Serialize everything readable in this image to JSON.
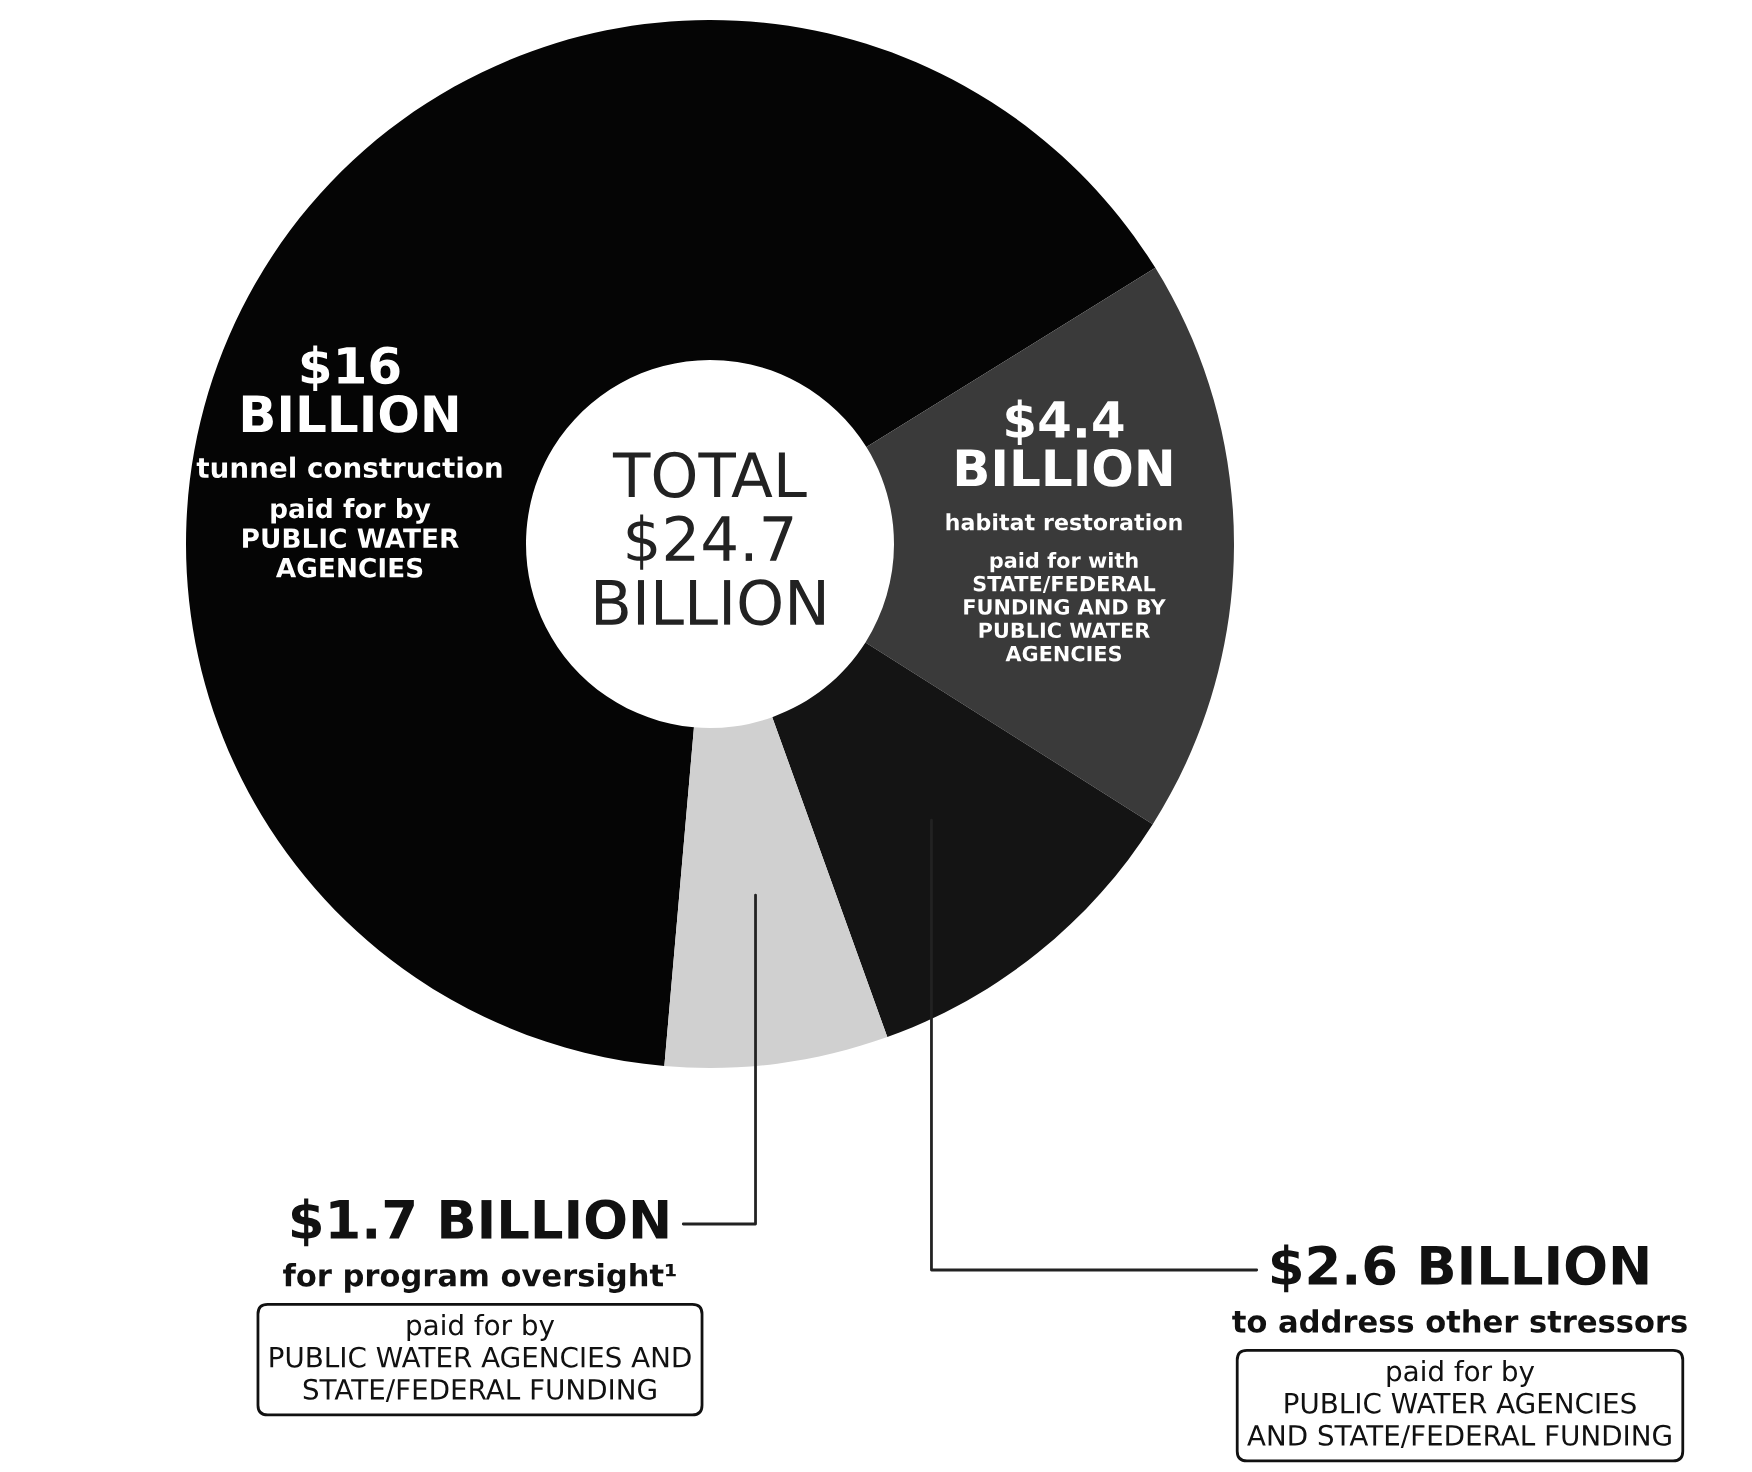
{
  "chart_data": {
    "type": "donut",
    "title": "TOTAL\n$24.7\nBILLION",
    "categories": [
      "tunnel construction",
      "habitat restoration",
      "to address other stressors",
      "for program oversight¹"
    ],
    "values": [
      16,
      4.4,
      2.6,
      1.7
    ],
    "value_labels": [
      "$16\nBILLION",
      "$4.4\nBILLION",
      "$2.6 BILLION",
      "$1.7 BILLION"
    ],
    "colors": [
      "#050505",
      "#3a3a3a",
      "#141414",
      "#d0d0d0"
    ],
    "annotations": [
      "paid for by\nPUBLIC WATER\nAGENCIES",
      "paid for with\nSTATE/FEDERAL\nFUNDING AND BY\nPUBLIC WATER\nAGENCIES",
      "paid for by\nPUBLIC WATER AGENCIES\nAND STATE/FEDERAL FUNDING",
      "paid for by\nPUBLIC WATER AGENCIES AND\nSTATE/FEDERAL FUNDING"
    ],
    "legend": false
  }
}
